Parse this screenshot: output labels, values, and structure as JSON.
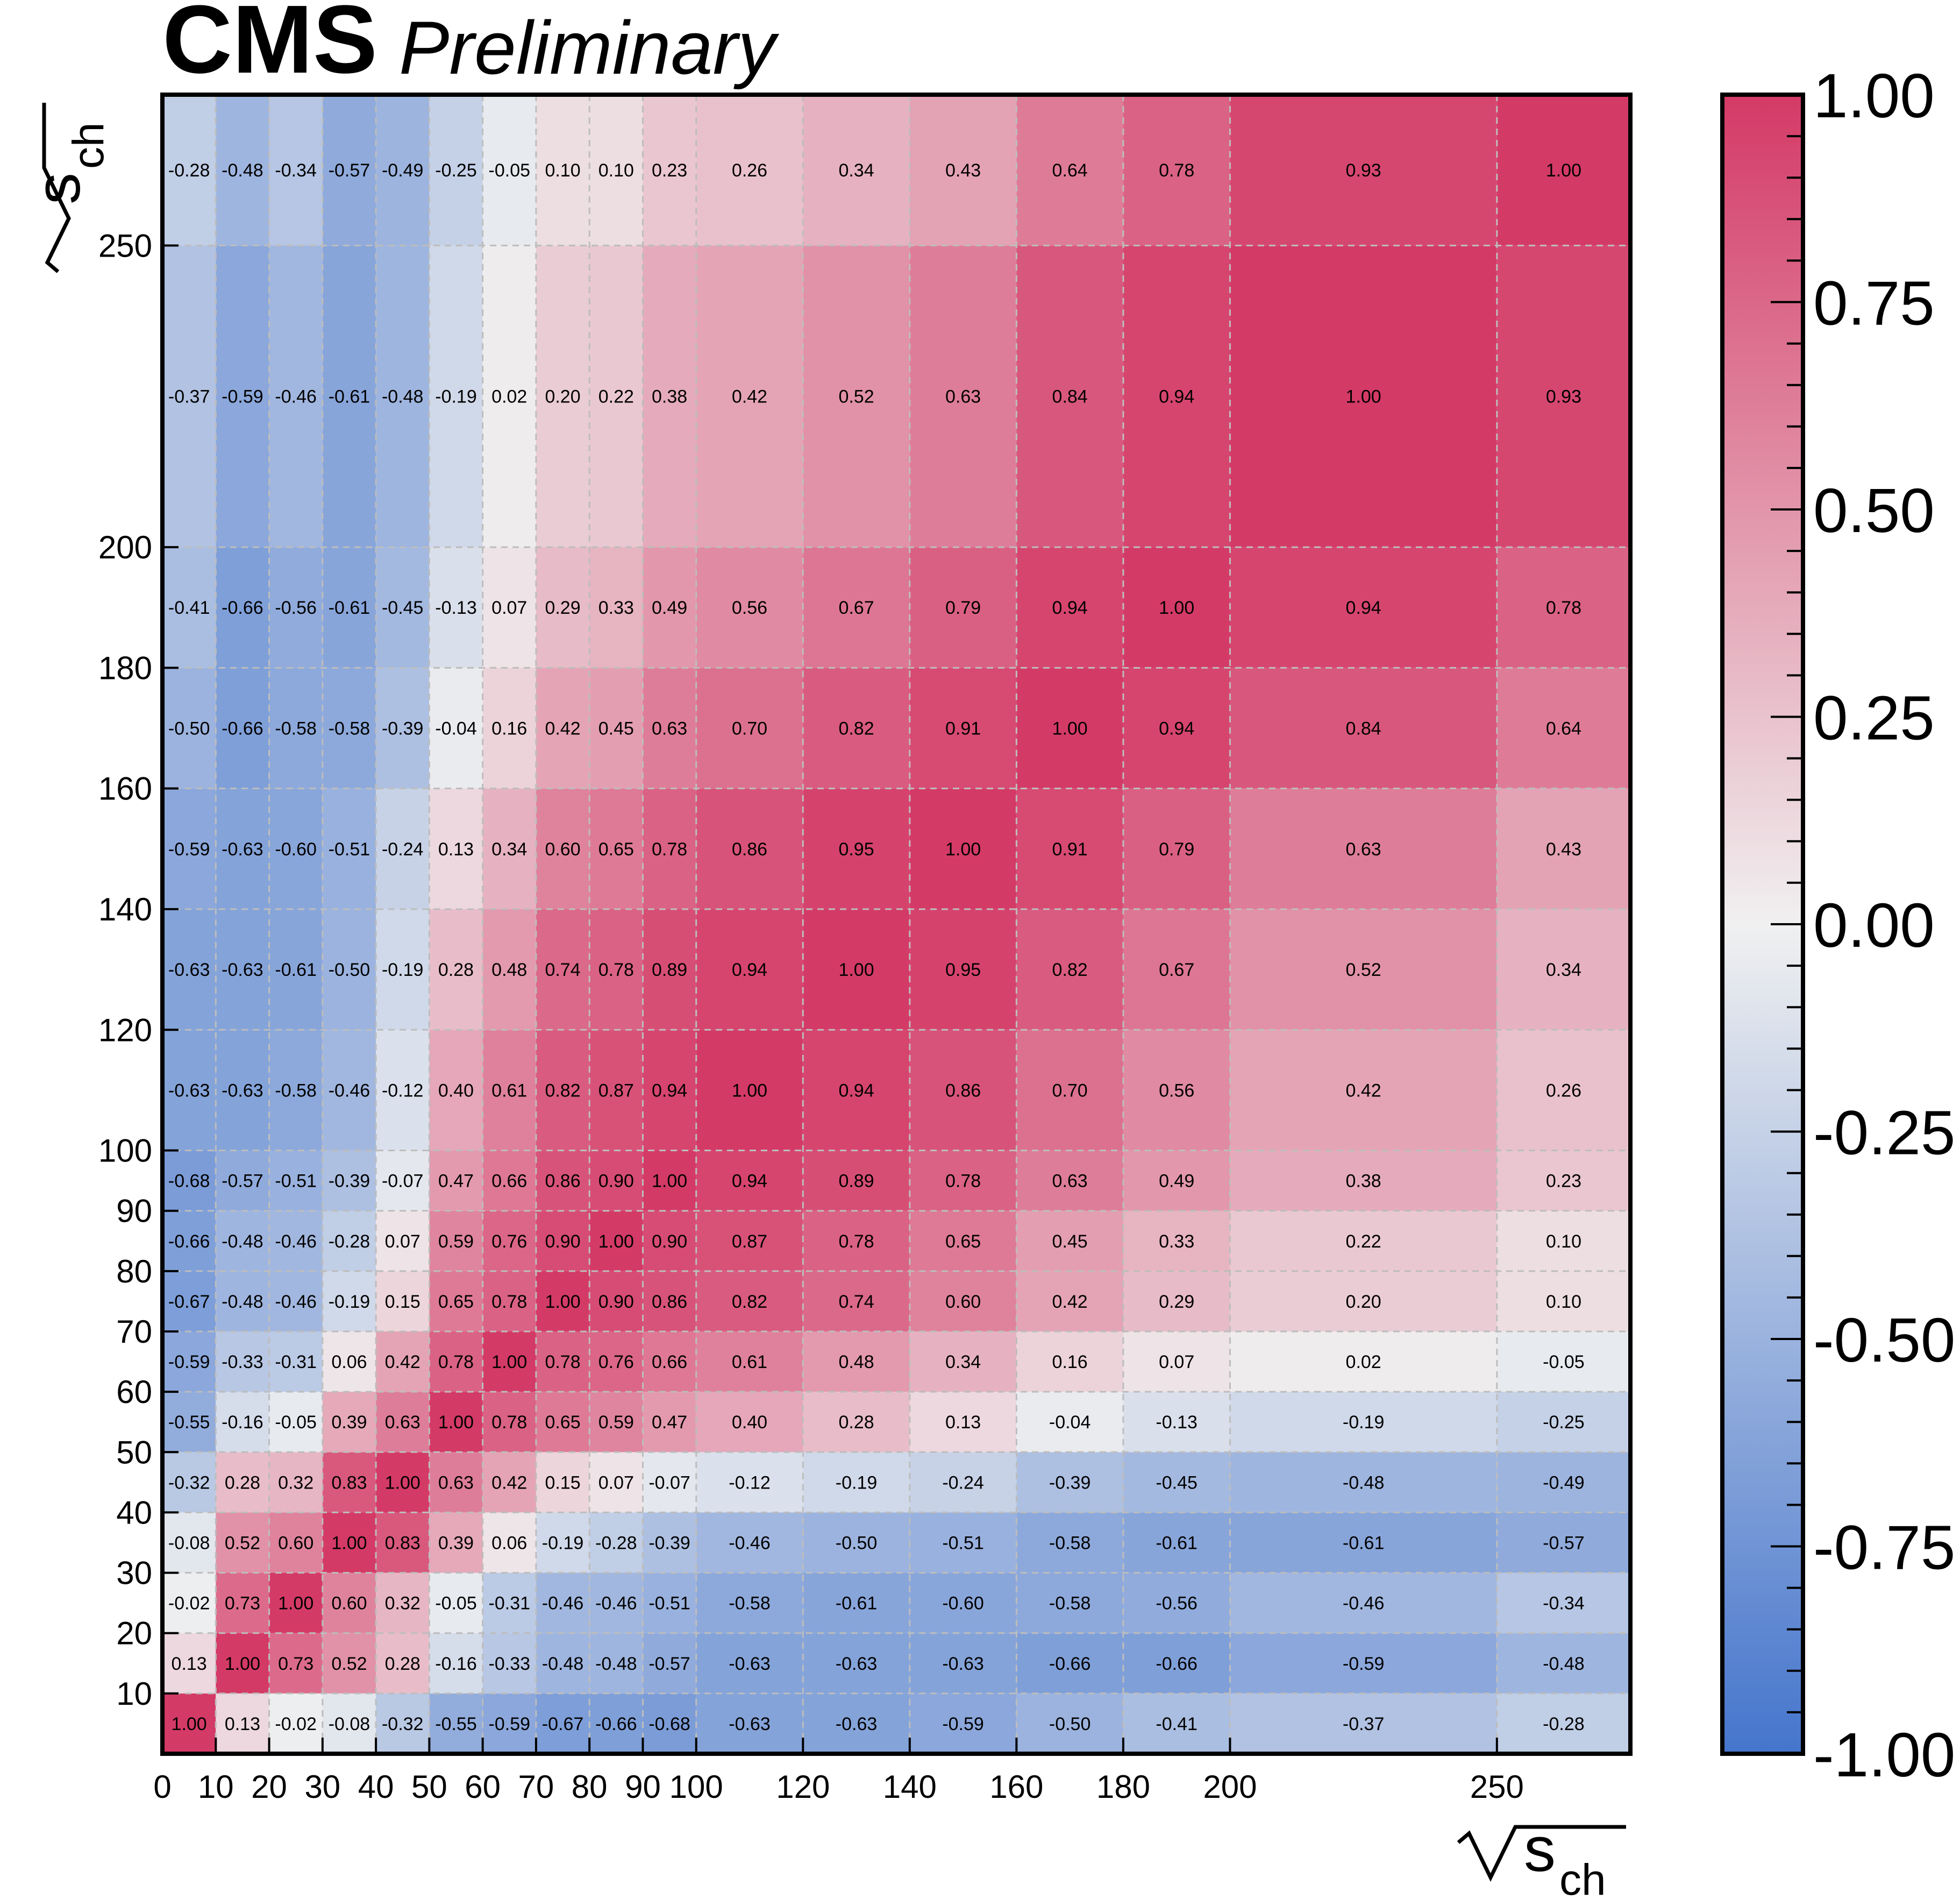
{
  "header": {
    "experiment": "CMS",
    "status": "Preliminary"
  },
  "chart_data": {
    "type": "heatmap",
    "title": "",
    "xlabel": "√s_ch",
    "ylabel": "√s_ch",
    "xlabel_main": "s",
    "xlabel_sub": "ch",
    "ylabel_main": "s",
    "ylabel_sub": "ch",
    "bin_edges": [
      0,
      10,
      20,
      30,
      40,
      50,
      60,
      70,
      80,
      90,
      100,
      120,
      140,
      160,
      180,
      200,
      250,
      275
    ],
    "x_ticks": [
      "0",
      "10",
      "20",
      "30",
      "40",
      "50",
      "60",
      "70",
      "80",
      "90",
      "100",
      "120",
      "140",
      "160",
      "180",
      "200",
      "250"
    ],
    "y_ticks": [
      "10",
      "20",
      "30",
      "40",
      "50",
      "60",
      "70",
      "80",
      "90",
      "100",
      "120",
      "140",
      "160",
      "180",
      "200",
      "250"
    ],
    "xlim": [
      0,
      275
    ],
    "ylim": [
      0,
      275
    ],
    "zlim": [
      -1.0,
      1.0
    ],
    "colorbar_ticks": [
      "1.00",
      "0.75",
      "0.50",
      "0.25",
      "0.00",
      "-0.25",
      "-0.50",
      "-0.75",
      "-1.00"
    ],
    "colorscale": {
      "low": "#4575cc",
      "mid": "#f0f0f0",
      "high": "#d43a66"
    },
    "grid_color": "#bdbdbd",
    "values": [
      [
        "1.00",
        "0.13",
        "-0.02",
        "-0.08",
        "-0.32",
        "-0.55",
        "-0.59",
        "-0.67",
        "-0.66",
        "-0.68",
        "-0.63",
        "-0.63",
        "-0.59",
        "-0.50",
        "-0.41",
        "-0.37",
        "-0.28"
      ],
      [
        "0.13",
        "1.00",
        "0.73",
        "0.52",
        "0.28",
        "-0.16",
        "-0.33",
        "-0.48",
        "-0.48",
        "-0.57",
        "-0.63",
        "-0.63",
        "-0.63",
        "-0.66",
        "-0.66",
        "-0.59",
        "-0.48"
      ],
      [
        "-0.02",
        "0.73",
        "1.00",
        "0.60",
        "0.32",
        "-0.05",
        "-0.31",
        "-0.46",
        "-0.46",
        "-0.51",
        "-0.58",
        "-0.61",
        "-0.60",
        "-0.58",
        "-0.56",
        "-0.46",
        "-0.34"
      ],
      [
        "-0.08",
        "0.52",
        "0.60",
        "1.00",
        "0.83",
        "0.39",
        "0.06",
        "-0.19",
        "-0.28",
        "-0.39",
        "-0.46",
        "-0.50",
        "-0.51",
        "-0.58",
        "-0.61",
        "-0.61",
        "-0.57"
      ],
      [
        "-0.32",
        "0.28",
        "0.32",
        "0.83",
        "1.00",
        "0.63",
        "0.42",
        "0.15",
        "0.07",
        "-0.07",
        "-0.12",
        "-0.19",
        "-0.24",
        "-0.39",
        "-0.45",
        "-0.48",
        "-0.49"
      ],
      [
        "-0.55",
        "-0.16",
        "-0.05",
        "0.39",
        "0.63",
        "1.00",
        "0.78",
        "0.65",
        "0.59",
        "0.47",
        "0.40",
        "0.28",
        "0.13",
        "-0.04",
        "-0.13",
        "-0.19",
        "-0.25"
      ],
      [
        "-0.59",
        "-0.33",
        "-0.31",
        "0.06",
        "0.42",
        "0.78",
        "1.00",
        "0.78",
        "0.76",
        "0.66",
        "0.61",
        "0.48",
        "0.34",
        "0.16",
        "0.07",
        "0.02",
        "-0.05"
      ],
      [
        "-0.67",
        "-0.48",
        "-0.46",
        "-0.19",
        "0.15",
        "0.65",
        "0.78",
        "1.00",
        "0.90",
        "0.86",
        "0.82",
        "0.74",
        "0.60",
        "0.42",
        "0.29",
        "0.20",
        "0.10"
      ],
      [
        "-0.66",
        "-0.48",
        "-0.46",
        "-0.28",
        "0.07",
        "0.59",
        "0.76",
        "0.90",
        "1.00",
        "0.90",
        "0.87",
        "0.78",
        "0.65",
        "0.45",
        "0.33",
        "0.22",
        "0.10"
      ],
      [
        "-0.68",
        "-0.57",
        "-0.51",
        "-0.39",
        "-0.07",
        "0.47",
        "0.66",
        "0.86",
        "0.90",
        "1.00",
        "0.94",
        "0.89",
        "0.78",
        "0.63",
        "0.49",
        "0.38",
        "0.23"
      ],
      [
        "-0.63",
        "-0.63",
        "-0.58",
        "-0.46",
        "-0.12",
        "0.40",
        "0.61",
        "0.82",
        "0.87",
        "0.94",
        "1.00",
        "0.94",
        "0.86",
        "0.70",
        "0.56",
        "0.42",
        "0.26"
      ],
      [
        "-0.63",
        "-0.63",
        "-0.61",
        "-0.50",
        "-0.19",
        "0.28",
        "0.48",
        "0.74",
        "0.78",
        "0.89",
        "0.94",
        "1.00",
        "0.95",
        "0.82",
        "0.67",
        "0.52",
        "0.34"
      ],
      [
        "-0.59",
        "-0.63",
        "-0.60",
        "-0.51",
        "-0.24",
        "0.13",
        "0.34",
        "0.60",
        "0.65",
        "0.78",
        "0.86",
        "0.95",
        "1.00",
        "0.91",
        "0.79",
        "0.63",
        "0.43"
      ],
      [
        "-0.50",
        "-0.66",
        "-0.58",
        "-0.58",
        "-0.39",
        "-0.04",
        "0.16",
        "0.42",
        "0.45",
        "0.63",
        "0.70",
        "0.82",
        "0.91",
        "1.00",
        "0.94",
        "0.84",
        "0.64"
      ],
      [
        "-0.41",
        "-0.66",
        "-0.56",
        "-0.61",
        "-0.45",
        "-0.13",
        "0.07",
        "0.29",
        "0.33",
        "0.49",
        "0.56",
        "0.67",
        "0.79",
        "0.94",
        "1.00",
        "0.94",
        "0.78"
      ],
      [
        "-0.37",
        "-0.59",
        "-0.46",
        "-0.61",
        "-0.48",
        "-0.19",
        "0.02",
        "0.20",
        "0.22",
        "0.38",
        "0.42",
        "0.52",
        "0.63",
        "0.84",
        "0.94",
        "1.00",
        "0.93"
      ],
      [
        "-0.28",
        "-0.48",
        "-0.34",
        "-0.57",
        "-0.49",
        "-0.25",
        "-0.05",
        "0.10",
        "0.10",
        "0.23",
        "0.26",
        "0.34",
        "0.43",
        "0.64",
        "0.78",
        "0.93",
        "1.00"
      ]
    ]
  }
}
